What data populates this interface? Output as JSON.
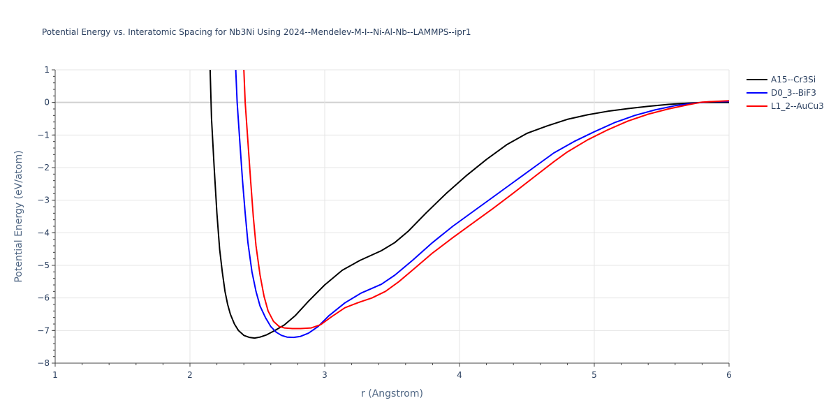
{
  "chart_data": {
    "type": "line",
    "title": "Potential Energy vs. Interatomic Spacing for Nb3Ni Using 2024--Mendelev-M-I--Ni-Al-Nb--LAMMPS--ipr1",
    "xlabel": "r (Angstrom)",
    "ylabel": "Potential Energy (eV/atom)",
    "xlim": [
      1,
      6
    ],
    "ylim": [
      -8,
      1
    ],
    "xticks": [
      1,
      2,
      3,
      4,
      5,
      6
    ],
    "yticks": [
      1,
      0,
      -1,
      -2,
      -3,
      -4,
      -5,
      -6,
      -7,
      -8
    ],
    "ytick_labels": [
      "1",
      "0",
      "−1",
      "−2",
      "−3",
      "−4",
      "−5",
      "−6",
      "−7",
      "−8"
    ],
    "grid": true,
    "legend_position": "top-right",
    "series": [
      {
        "name": "A15--Cr3Si",
        "color": "#000000",
        "points": [
          [
            2.15,
            1.0
          ],
          [
            2.16,
            -0.5
          ],
          [
            2.18,
            -2.0
          ],
          [
            2.2,
            -3.4
          ],
          [
            2.22,
            -4.5
          ],
          [
            2.24,
            -5.2
          ],
          [
            2.26,
            -5.8
          ],
          [
            2.28,
            -6.2
          ],
          [
            2.3,
            -6.5
          ],
          [
            2.33,
            -6.8
          ],
          [
            2.36,
            -7.0
          ],
          [
            2.4,
            -7.15
          ],
          [
            2.44,
            -7.21
          ],
          [
            2.48,
            -7.23
          ],
          [
            2.52,
            -7.2
          ],
          [
            2.57,
            -7.13
          ],
          [
            2.63,
            -7.0
          ],
          [
            2.7,
            -6.83
          ],
          [
            2.78,
            -6.55
          ],
          [
            2.88,
            -6.1
          ],
          [
            3.0,
            -5.6
          ],
          [
            3.13,
            -5.15
          ],
          [
            3.26,
            -4.85
          ],
          [
            3.42,
            -4.55
          ],
          [
            3.52,
            -4.3
          ],
          [
            3.62,
            -3.95
          ],
          [
            3.75,
            -3.4
          ],
          [
            3.9,
            -2.8
          ],
          [
            4.05,
            -2.25
          ],
          [
            4.2,
            -1.75
          ],
          [
            4.35,
            -1.3
          ],
          [
            4.5,
            -0.95
          ],
          [
            4.65,
            -0.72
          ],
          [
            4.8,
            -0.52
          ],
          [
            4.95,
            -0.38
          ],
          [
            5.1,
            -0.27
          ],
          [
            5.25,
            -0.19
          ],
          [
            5.4,
            -0.12
          ],
          [
            5.55,
            -0.06
          ],
          [
            5.7,
            -0.02
          ],
          [
            5.8,
            0.0
          ],
          [
            6.0,
            0.0
          ]
        ]
      },
      {
        "name": "D0_3--BiF3",
        "color": "#0000ff",
        "points": [
          [
            2.34,
            1.0
          ],
          [
            2.35,
            0.0
          ],
          [
            2.37,
            -1.2
          ],
          [
            2.39,
            -2.4
          ],
          [
            2.41,
            -3.4
          ],
          [
            2.43,
            -4.3
          ],
          [
            2.46,
            -5.2
          ],
          [
            2.49,
            -5.8
          ],
          [
            2.52,
            -6.25
          ],
          [
            2.56,
            -6.6
          ],
          [
            2.6,
            -6.88
          ],
          [
            2.64,
            -7.05
          ],
          [
            2.68,
            -7.15
          ],
          [
            2.72,
            -7.2
          ],
          [
            2.77,
            -7.21
          ],
          [
            2.82,
            -7.18
          ],
          [
            2.88,
            -7.08
          ],
          [
            2.95,
            -6.88
          ],
          [
            3.03,
            -6.55
          ],
          [
            3.15,
            -6.15
          ],
          [
            3.27,
            -5.85
          ],
          [
            3.42,
            -5.58
          ],
          [
            3.52,
            -5.3
          ],
          [
            3.65,
            -4.85
          ],
          [
            3.8,
            -4.3
          ],
          [
            3.95,
            -3.8
          ],
          [
            4.1,
            -3.35
          ],
          [
            4.25,
            -2.9
          ],
          [
            4.4,
            -2.45
          ],
          [
            4.55,
            -2.0
          ],
          [
            4.7,
            -1.55
          ],
          [
            4.85,
            -1.2
          ],
          [
            5.0,
            -0.9
          ],
          [
            5.15,
            -0.62
          ],
          [
            5.3,
            -0.4
          ],
          [
            5.45,
            -0.23
          ],
          [
            5.6,
            -0.1
          ],
          [
            5.75,
            -0.02
          ],
          [
            5.85,
            0.02
          ],
          [
            6.0,
            0.03
          ]
        ]
      },
      {
        "name": "L1_2--AuCu3",
        "color": "#ff0000",
        "points": [
          [
            2.4,
            1.0
          ],
          [
            2.41,
            0.0
          ],
          [
            2.43,
            -1.2
          ],
          [
            2.45,
            -2.4
          ],
          [
            2.47,
            -3.5
          ],
          [
            2.49,
            -4.4
          ],
          [
            2.52,
            -5.3
          ],
          [
            2.55,
            -5.95
          ],
          [
            2.58,
            -6.4
          ],
          [
            2.62,
            -6.72
          ],
          [
            2.66,
            -6.87
          ],
          [
            2.7,
            -6.92
          ],
          [
            2.76,
            -6.94
          ],
          [
            2.82,
            -6.94
          ],
          [
            2.9,
            -6.92
          ],
          [
            2.97,
            -6.82
          ],
          [
            3.05,
            -6.58
          ],
          [
            3.15,
            -6.3
          ],
          [
            3.25,
            -6.14
          ],
          [
            3.35,
            -6.0
          ],
          [
            3.45,
            -5.8
          ],
          [
            3.55,
            -5.5
          ],
          [
            3.65,
            -5.15
          ],
          [
            3.8,
            -4.62
          ],
          [
            3.95,
            -4.15
          ],
          [
            4.1,
            -3.7
          ],
          [
            4.25,
            -3.25
          ],
          [
            4.4,
            -2.78
          ],
          [
            4.55,
            -2.3
          ],
          [
            4.7,
            -1.82
          ],
          [
            4.8,
            -1.52
          ],
          [
            4.95,
            -1.15
          ],
          [
            5.1,
            -0.84
          ],
          [
            5.25,
            -0.57
          ],
          [
            5.4,
            -0.36
          ],
          [
            5.55,
            -0.2
          ],
          [
            5.7,
            -0.07
          ],
          [
            5.8,
            0.01
          ],
          [
            6.0,
            0.05
          ]
        ]
      }
    ]
  }
}
